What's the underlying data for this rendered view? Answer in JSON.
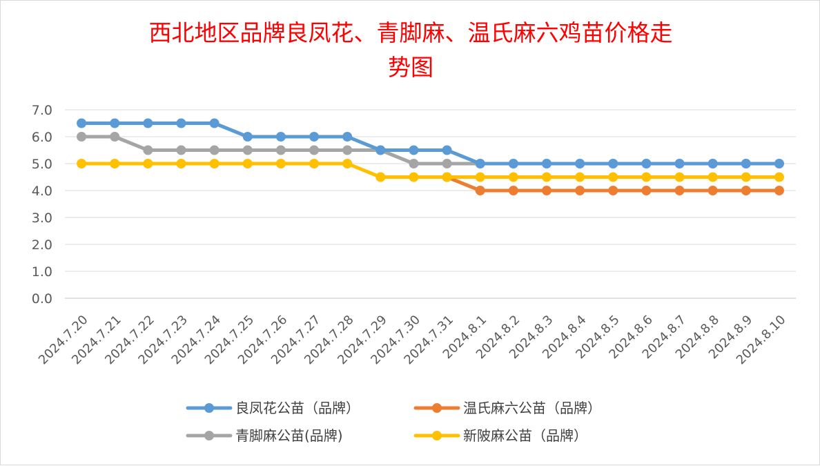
{
  "chart_data": {
    "type": "line",
    "title": "西北地区品牌良凤花、青脚麻、温氏麻六鸡苗价格走势图",
    "title_lines": [
      "西北地区品牌良凤花、青脚麻、温氏麻六鸡苗价格走",
      "势图"
    ],
    "categories": [
      "2024.7.20",
      "2024.7.21",
      "2024.7.22",
      "2024.7.23",
      "2024.7.24",
      "2024.7.25",
      "2024.7.26",
      "2024.7.27",
      "2024.7.28",
      "2024.7.29",
      "2024.7.30",
      "2024.7.31",
      "2024.8.1",
      "2024.8.2",
      "2024.8.3",
      "2024.8.4",
      "2024.8.5",
      "2024.8.6",
      "2024.8.7",
      "2024.8.8",
      "2024.8.9",
      "2024.8.10"
    ],
    "ylim": [
      0,
      7
    ],
    "yticks": [
      "0.0",
      "1.0",
      "2.0",
      "3.0",
      "4.0",
      "5.0",
      "6.0",
      "7.0"
    ],
    "grid": true,
    "legend_position": "bottom",
    "title_color": "#ff0000",
    "series": [
      {
        "name": "良凤花公苗（品牌）",
        "color": "#5b9bd5",
        "values": [
          6.5,
          6.5,
          6.5,
          6.5,
          6.5,
          6.0,
          6.0,
          6.0,
          6.0,
          5.5,
          5.5,
          5.5,
          5.0,
          5.0,
          5.0,
          5.0,
          5.0,
          5.0,
          5.0,
          5.0,
          5.0,
          5.0
        ]
      },
      {
        "name": "温氏麻六公苗（品牌）",
        "color": "#ed7d31",
        "values": [
          null,
          null,
          null,
          null,
          null,
          null,
          null,
          null,
          null,
          null,
          null,
          4.5,
          4.0,
          4.0,
          4.0,
          4.0,
          4.0,
          4.0,
          4.0,
          4.0,
          4.0,
          4.0
        ]
      },
      {
        "name": "青脚麻公苗(品牌)",
        "color": "#a5a5a5",
        "values": [
          6.0,
          6.0,
          5.5,
          5.5,
          5.5,
          5.5,
          5.5,
          5.5,
          5.5,
          5.5,
          5.0,
          5.0,
          5.0,
          5.0,
          5.0,
          5.0,
          5.0,
          5.0,
          5.0,
          5.0,
          5.0,
          5.0
        ]
      },
      {
        "name": "新陂麻公苗（品牌）",
        "color": "#ffc000",
        "values": [
          5.0,
          5.0,
          5.0,
          5.0,
          5.0,
          5.0,
          5.0,
          5.0,
          5.0,
          4.5,
          4.5,
          4.5,
          4.5,
          4.5,
          4.5,
          4.5,
          4.5,
          4.5,
          4.5,
          4.5,
          4.5,
          4.5
        ]
      }
    ]
  }
}
